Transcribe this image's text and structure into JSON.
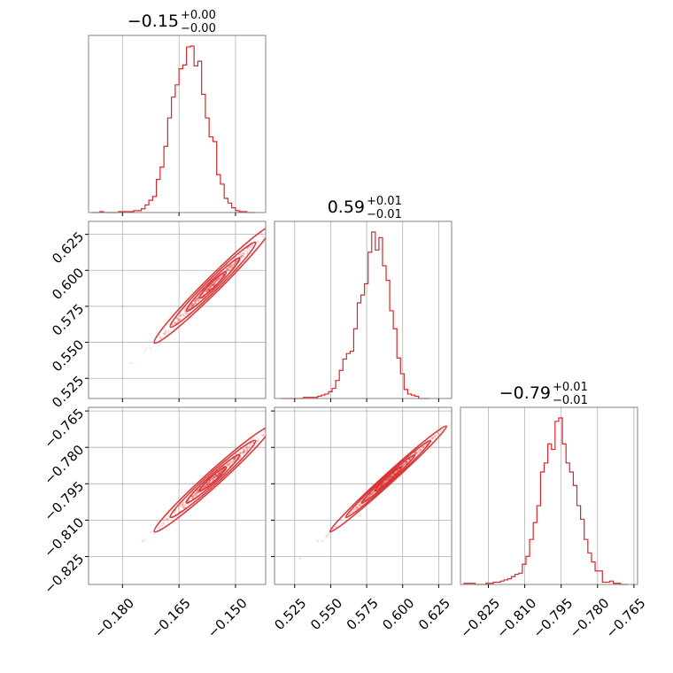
{
  "chart_data": {
    "type": "corner",
    "color": "#d62728",
    "parameters": [
      {
        "title": {
          "main": "−0.15",
          "sup": "+0.00",
          "sub": "−0.00"
        },
        "range": [
          -0.189,
          -0.142
        ],
        "ticks": [
          -0.18,
          -0.165,
          -0.15
        ],
        "tick_labels": [
          "−0.180",
          "−0.165",
          "−0.150"
        ]
      },
      {
        "title": {
          "main": "0.59",
          "sup": "+0.01",
          "sub": "−0.01"
        },
        "range": [
          0.511,
          0.634
        ],
        "ticks": [
          0.525,
          0.55,
          0.575,
          0.6,
          0.625
        ],
        "tick_labels": [
          "0.525",
          "0.550",
          "0.575",
          "0.600",
          "0.625"
        ]
      },
      {
        "title": {
          "main": "−0.79",
          "sup": "+0.01",
          "sub": "−0.01"
        },
        "range": [
          -0.8365,
          -0.7635
        ],
        "ticks": [
          -0.825,
          -0.81,
          -0.795,
          -0.78,
          -0.765
        ],
        "tick_labels": [
          "−0.825",
          "−0.810",
          "−0.795",
          "−0.780",
          "−0.765"
        ]
      }
    ],
    "histograms": [
      {
        "edges_start": -0.188,
        "bin_width": 0.001,
        "counts": [
          0,
          0,
          1,
          0,
          0,
          0,
          0,
          1,
          1,
          1,
          1,
          2,
          2,
          4,
          8,
          13,
          17,
          35,
          48,
          70,
          100,
          122,
          135,
          152,
          156,
          175,
          176,
          155,
          160,
          125,
          100,
          80,
          75,
          40,
          30,
          15,
          10,
          5,
          2,
          1,
          1,
          0,
          0
        ]
      },
      {
        "edges_start": 0.516,
        "bin_width": 0.0025,
        "counts": [
          0,
          0,
          0,
          0,
          0,
          0,
          1,
          1,
          1,
          1,
          2,
          3,
          4,
          6,
          9,
          16,
          25,
          35,
          40,
          42,
          62,
          85,
          92,
          102,
          130,
          148,
          132,
          143,
          118,
          105,
          78,
          62,
          36,
          22,
          8,
          4,
          3,
          2,
          0,
          0,
          0
        ]
      },
      {
        "edges_start": -0.835,
        "bin_width": 0.0015,
        "counts": [
          1,
          1,
          1,
          0,
          0,
          0,
          1,
          1,
          2,
          2,
          3,
          4,
          5,
          7,
          9,
          10,
          18,
          25,
          40,
          55,
          70,
          100,
          108,
          125,
          120,
          145,
          148,
          125,
          108,
          100,
          88,
          70,
          58,
          40,
          28,
          20,
          12,
          12,
          2,
          2,
          3,
          1,
          1,
          0,
          0
        ]
      }
    ],
    "correlations": {
      "p0_p1": 0.995,
      "p0_p2": 0.995,
      "p1_p2": 0.998
    },
    "center": [
      -0.156,
      0.59,
      -0.793
    ],
    "sigma": [
      0.005,
      0.013,
      0.007
    ],
    "grid": true
  }
}
